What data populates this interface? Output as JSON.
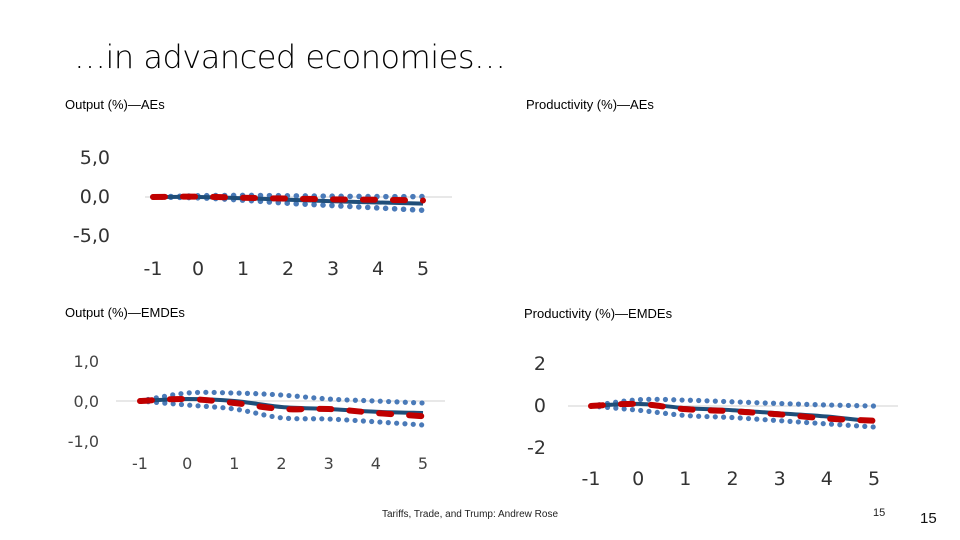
{
  "slide": {
    "title": "…in advanced economies…",
    "footer": "Tariffs, Trade, and Trump: Andrew Rose",
    "page_number_small": "15",
    "page_number_large": "15"
  },
  "panels": {
    "output_aes_title": "Output (%)—AEs",
    "productivity_aes_title": "Productivity (%)—AEs",
    "output_emdes_title": "Output (%)—EMDEs",
    "productivity_emdes_title": "Productivity (%)—EMDEs"
  },
  "colors": {
    "estimate": "#1f4e79",
    "band": "#4a7ab8",
    "alt": "#c00000",
    "axis": "#d0d0d0"
  },
  "chart_data": [
    {
      "id": "output-aes",
      "type": "line",
      "title": "Output (%)—AEs",
      "x": [
        -1,
        0,
        1,
        2,
        3,
        4,
        5
      ],
      "x_tick_labels": [
        "-1",
        "0",
        "1",
        "2",
        "3",
        "4",
        "5"
      ],
      "y_tick_values": [
        5,
        0,
        -5
      ],
      "y_tick_labels": [
        "5,0",
        "0,0",
        "-5,0"
      ],
      "ylim": [
        -5,
        5
      ],
      "series": [
        {
          "name": "upper band",
          "style": "dotted",
          "values": [
            0,
            0.15,
            0.2,
            0.15,
            0.1,
            0.05,
            0.05
          ]
        },
        {
          "name": "lower band",
          "style": "dotted",
          "values": [
            0,
            -0.1,
            -0.4,
            -0.8,
            -1.1,
            -1.4,
            -1.7
          ]
        },
        {
          "name": "estimate",
          "style": "solid",
          "values": [
            0,
            0,
            -0.15,
            -0.35,
            -0.55,
            -0.7,
            -0.85
          ]
        },
        {
          "name": "alternative",
          "style": "dashed",
          "values": [
            0,
            0.05,
            -0.1,
            -0.2,
            -0.3,
            -0.35,
            -0.45
          ]
        }
      ]
    },
    {
      "id": "output-emdes",
      "type": "line",
      "title": "Output (%)—EMDEs",
      "x": [
        -1,
        0,
        1,
        2,
        3,
        4,
        5
      ],
      "x_tick_labels": [
        "-1",
        "0",
        "1",
        "2",
        "3",
        "4",
        "5"
      ],
      "y_tick_values": [
        1,
        0,
        -1
      ],
      "y_tick_labels": [
        "1,0",
        "0,0",
        "-1,0"
      ],
      "ylim": [
        -1,
        1
      ],
      "series": [
        {
          "name": "upper band",
          "style": "dotted",
          "values": [
            0,
            0.2,
            0.2,
            0.15,
            0.05,
            0,
            -0.05
          ]
        },
        {
          "name": "lower band",
          "style": "dotted",
          "values": [
            0,
            -0.1,
            -0.2,
            -0.42,
            -0.45,
            -0.52,
            -0.6
          ]
        },
        {
          "name": "estimate",
          "style": "solid",
          "values": [
            0,
            0.05,
            0,
            -0.15,
            -0.2,
            -0.27,
            -0.3
          ]
        },
        {
          "name": "alternative",
          "style": "dashed",
          "values": [
            0,
            0.05,
            -0.05,
            -0.2,
            -0.2,
            -0.3,
            -0.38
          ]
        }
      ]
    },
    {
      "id": "productivity-emdes",
      "type": "line",
      "title": "Productivity (%)—EMDEs",
      "x": [
        -1,
        0,
        1,
        2,
        3,
        4,
        5
      ],
      "x_tick_labels": [
        "-1",
        "0",
        "1",
        "2",
        "3",
        "4",
        "5"
      ],
      "y_tick_values": [
        2,
        0,
        -2
      ],
      "y_tick_labels": [
        "2",
        "0",
        "-2"
      ],
      "ylim": [
        -2,
        2
      ],
      "series": [
        {
          "name": "upper band",
          "style": "dotted",
          "values": [
            0,
            0.3,
            0.28,
            0.2,
            0.12,
            0.05,
            0
          ]
        },
        {
          "name": "lower band",
          "style": "dotted",
          "values": [
            0,
            -0.2,
            -0.45,
            -0.55,
            -0.7,
            -0.85,
            -1.0
          ]
        },
        {
          "name": "estimate",
          "style": "solid",
          "values": [
            0,
            0.1,
            -0.1,
            -0.2,
            -0.35,
            -0.5,
            -0.75
          ]
        },
        {
          "name": "alternative",
          "style": "dashed",
          "values": [
            0,
            0.1,
            -0.15,
            -0.25,
            -0.4,
            -0.6,
            -0.7
          ]
        }
      ]
    }
  ]
}
